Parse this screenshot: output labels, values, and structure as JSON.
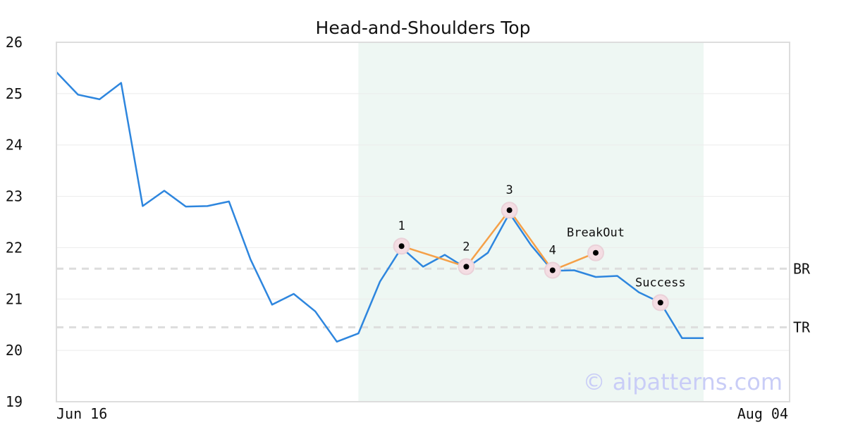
{
  "chart_data": {
    "type": "line",
    "title": "Head-and-Shoulders Top",
    "x_tick_labels": [
      "Jun 16",
      "Aug 04"
    ],
    "ylim": [
      19,
      26
    ],
    "y_ticks": [
      19,
      20,
      21,
      22,
      23,
      24,
      25,
      26
    ],
    "grid": true,
    "series": [
      {
        "color": "#2e86de",
        "values": [
          25.42,
          24.98,
          24.89,
          25.21,
          22.81,
          23.11,
          22.8,
          22.81,
          22.9,
          21.77,
          20.89,
          21.1,
          20.76,
          20.17,
          20.33,
          21.34,
          22.0,
          21.63,
          21.86,
          21.6,
          21.9,
          22.67,
          22.05,
          21.55,
          21.56,
          21.43,
          21.45,
          21.13,
          20.93,
          20.24,
          20.24
        ]
      }
    ],
    "highlight_region": {
      "from_index": 14,
      "to_index": 30,
      "color": "#eef7f3"
    },
    "pattern_line": {
      "color": "#f5a048",
      "points": [
        {
          "index": 16,
          "value": 22.03
        },
        {
          "index": 19,
          "value": 21.63
        },
        {
          "index": 21,
          "value": 22.73
        },
        {
          "index": 23,
          "value": 21.56
        },
        {
          "index": 25,
          "value": 21.9
        }
      ]
    },
    "markers": [
      {
        "index": 16,
        "value": 22.03,
        "label": "1"
      },
      {
        "index": 19,
        "value": 21.63,
        "label": "2"
      },
      {
        "index": 21,
        "value": 22.73,
        "label": "3"
      },
      {
        "index": 23,
        "value": 21.56,
        "label": "4"
      },
      {
        "index": 25,
        "value": 21.9,
        "label": "BreakOut"
      },
      {
        "index": 28,
        "value": 20.93,
        "label": "Success"
      }
    ],
    "reference_lines": [
      {
        "value": 21.59,
        "label": "BR"
      },
      {
        "value": 20.45,
        "label": "TR"
      }
    ]
  },
  "watermark": "© aipatterns.com"
}
